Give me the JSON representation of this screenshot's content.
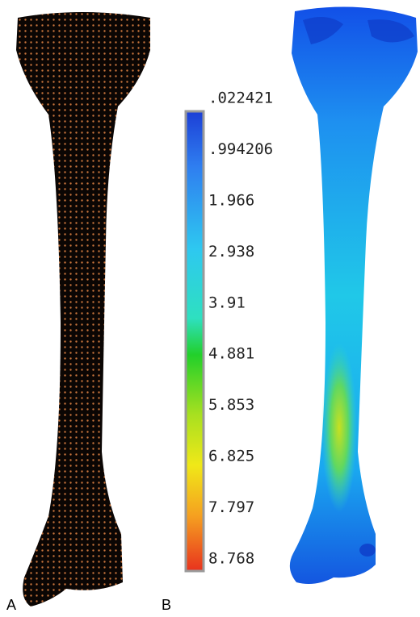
{
  "panels": {
    "left_label": "A",
    "right_label": "B"
  },
  "colorbar": {
    "labels": [
      ".022421",
      ".994206",
      "1.966",
      "2.938",
      "3.91",
      "4.881",
      "5.853",
      "6.825",
      "7.797",
      "8.768"
    ]
  }
}
